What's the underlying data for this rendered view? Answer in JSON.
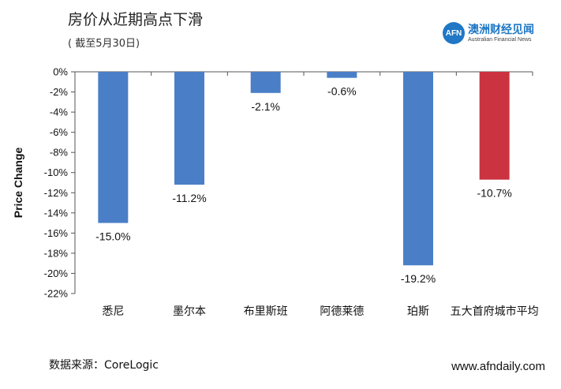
{
  "header": {
    "title": "房价从近期高点下滑",
    "subtitle": "( 截至5月30日)"
  },
  "logo": {
    "mark": "AFN",
    "cn": "澳洲财经见闻",
    "en": "Australian Financial News"
  },
  "footer": {
    "source": "数据来源：CoreLogic",
    "site": "www.afndaily.com"
  },
  "chart_data": {
    "type": "bar",
    "title": "房价从近期高点下滑",
    "ylabel": "Price Change",
    "ylim": [
      -22,
      0
    ],
    "yticks": [
      0,
      -2,
      -4,
      -6,
      -8,
      -10,
      -12,
      -14,
      -16,
      -18,
      -20,
      -22
    ],
    "ytick_labels": [
      "0%",
      "-2%",
      "-4%",
      "-6%",
      "-8%",
      "-10%",
      "-12%",
      "-14%",
      "-16%",
      "-18%",
      "-20%",
      "-22%"
    ],
    "categories": [
      "悉尼",
      "墨尔本",
      "布里斯班",
      "阿德莱德",
      "珀斯",
      "五大首府城市平均"
    ],
    "values": [
      -15.0,
      -11.2,
      -2.1,
      -0.6,
      -19.2,
      -10.7
    ],
    "data_labels": [
      "-15.0%",
      "-11.2%",
      "-2.1%",
      "-0.6%",
      "-19.2%",
      "-10.7%"
    ],
    "colors": [
      "#4a7fc7",
      "#4a7fc7",
      "#4a7fc7",
      "#4a7fc7",
      "#4a7fc7",
      "#cc3340"
    ],
    "grid": false,
    "legend": "none"
  }
}
